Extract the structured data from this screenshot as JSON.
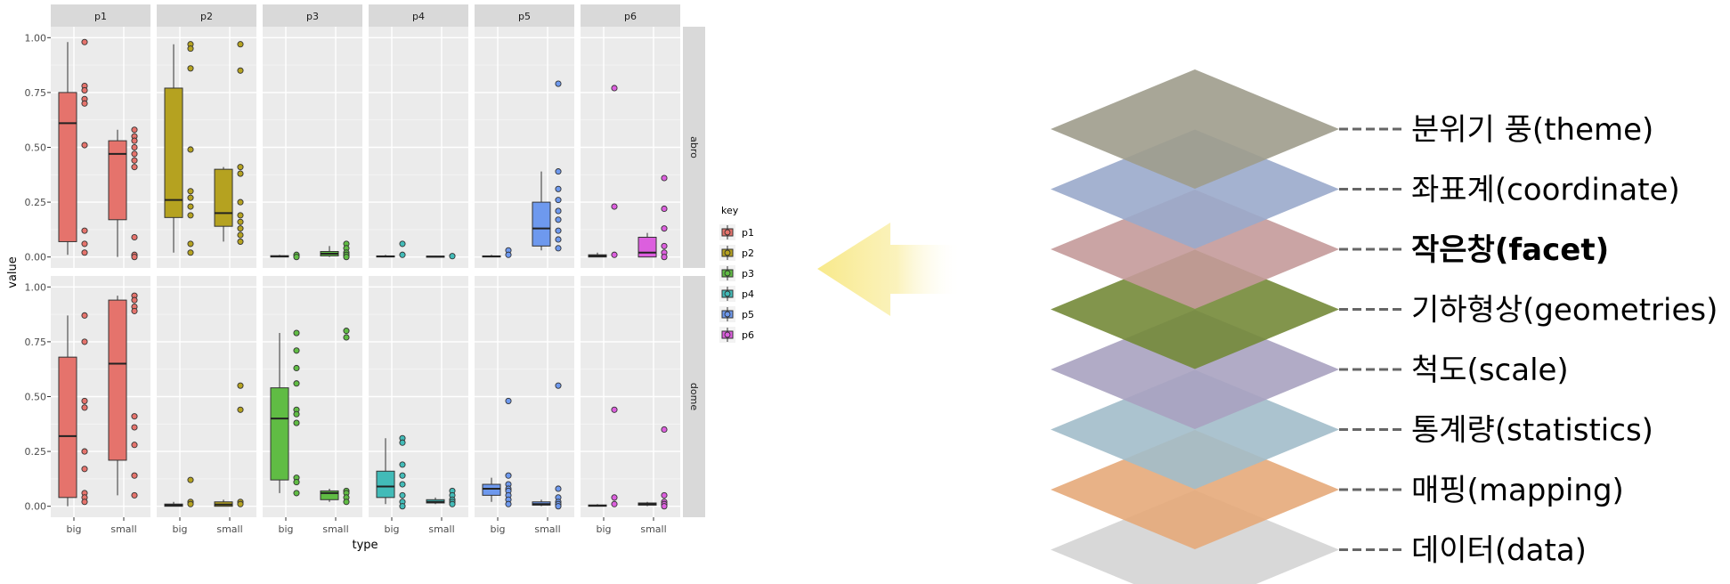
{
  "chart_data": {
    "type": "boxplot",
    "xlabel": "type",
    "ylabel": "value",
    "x_categories": [
      "big",
      "small"
    ],
    "col_facets": [
      "p1",
      "p2",
      "p3",
      "p4",
      "p5",
      "p6"
    ],
    "row_facets": [
      "abro",
      "dome"
    ],
    "y_ticks": [
      "0.00",
      "0.25",
      "0.50",
      "0.75",
      "1.00"
    ],
    "ylim": [
      0,
      1
    ],
    "legend": {
      "title": "key",
      "position": "right",
      "entries": [
        {
          "label": "p1",
          "color": "#E5736C"
        },
        {
          "label": "p2",
          "color": "#B5A220"
        },
        {
          "label": "p3",
          "color": "#60BC44"
        },
        {
          "label": "p4",
          "color": "#42BBB8"
        },
        {
          "label": "p5",
          "color": "#6E99EE"
        },
        {
          "label": "p6",
          "color": "#DC5FDE"
        }
      ]
    },
    "panels": [
      {
        "row": "abro",
        "col": "p1",
        "boxes": [
          {
            "x": "big",
            "min": 0.01,
            "q1": 0.07,
            "median": 0.61,
            "q3": 0.75,
            "max": 0.98,
            "points": [
              0.98,
              0.78,
              0.76,
              0.72,
              0.7,
              0.51,
              0.12,
              0.06,
              0.02
            ]
          },
          {
            "x": "small",
            "min": 0.0,
            "q1": 0.17,
            "median": 0.47,
            "q3": 0.53,
            "max": 0.58,
            "points": [
              0.58,
              0.55,
              0.53,
              0.5,
              0.47,
              0.44,
              0.41,
              0.09,
              0.01,
              0.0
            ]
          }
        ]
      },
      {
        "row": "abro",
        "col": "p2",
        "boxes": [
          {
            "x": "big",
            "min": 0.02,
            "q1": 0.18,
            "median": 0.26,
            "q3": 0.77,
            "max": 0.97,
            "points": [
              0.97,
              0.95,
              0.86,
              0.49,
              0.3,
              0.27,
              0.23,
              0.19,
              0.06,
              0.02
            ]
          },
          {
            "x": "small",
            "min": 0.07,
            "q1": 0.14,
            "median": 0.2,
            "q3": 0.4,
            "max": 0.41,
            "points": [
              0.97,
              0.85,
              0.41,
              0.38,
              0.25,
              0.19,
              0.16,
              0.13,
              0.1,
              0.07
            ]
          }
        ]
      },
      {
        "row": "abro",
        "col": "p3",
        "boxes": [
          {
            "x": "big",
            "min": 0.0,
            "q1": 0.0,
            "median": 0.003,
            "q3": 0.006,
            "max": 0.01,
            "points": [
              0.01,
              0.0
            ]
          },
          {
            "x": "small",
            "min": 0.0,
            "q1": 0.005,
            "median": 0.015,
            "q3": 0.025,
            "max": 0.05,
            "points": [
              0.06,
              0.04,
              0.02,
              0.01,
              0.0
            ]
          }
        ]
      },
      {
        "row": "abro",
        "col": "p4",
        "boxes": [
          {
            "x": "big",
            "min": 0.0,
            "q1": 0.0,
            "median": 0.003,
            "q3": 0.005,
            "max": 0.01,
            "points": [
              0.06,
              0.01
            ]
          },
          {
            "x": "small",
            "min": 0.0,
            "q1": 0.0,
            "median": 0.002,
            "q3": 0.004,
            "max": 0.006,
            "points": [
              0.004
            ]
          }
        ]
      },
      {
        "row": "abro",
        "col": "p5",
        "boxes": [
          {
            "x": "big",
            "min": 0.0,
            "q1": 0.0,
            "median": 0.003,
            "q3": 0.005,
            "max": 0.01,
            "points": [
              0.03,
              0.01
            ]
          },
          {
            "x": "small",
            "min": 0.03,
            "q1": 0.05,
            "median": 0.13,
            "q3": 0.25,
            "max": 0.39,
            "points": [
              0.79,
              0.39,
              0.31,
              0.26,
              0.21,
              0.17,
              0.12,
              0.08,
              0.04
            ]
          }
        ]
      },
      {
        "row": "abro",
        "col": "p6",
        "boxes": [
          {
            "x": "big",
            "min": 0.0,
            "q1": 0.0,
            "median": 0.005,
            "q3": 0.01,
            "max": 0.02,
            "points": [
              0.77,
              0.23,
              0.01
            ]
          },
          {
            "x": "small",
            "min": 0.0,
            "q1": 0.0,
            "median": 0.02,
            "q3": 0.09,
            "max": 0.11,
            "points": [
              0.36,
              0.22,
              0.13,
              0.05,
              0.02,
              0.0
            ]
          }
        ]
      },
      {
        "row": "dome",
        "col": "p1",
        "boxes": [
          {
            "x": "big",
            "min": 0.0,
            "q1": 0.04,
            "median": 0.32,
            "q3": 0.68,
            "max": 0.87,
            "points": [
              0.87,
              0.75,
              0.48,
              0.45,
              0.25,
              0.17,
              0.06,
              0.04,
              0.02
            ]
          },
          {
            "x": "small",
            "min": 0.05,
            "q1": 0.21,
            "median": 0.65,
            "q3": 0.94,
            "max": 0.96,
            "points": [
              0.96,
              0.94,
              0.91,
              0.89,
              0.41,
              0.36,
              0.28,
              0.14,
              0.05
            ]
          }
        ]
      },
      {
        "row": "dome",
        "col": "p2",
        "boxes": [
          {
            "x": "big",
            "min": 0.0,
            "q1": 0.0,
            "median": 0.005,
            "q3": 0.01,
            "max": 0.02,
            "points": [
              0.12,
              0.02,
              0.01
            ]
          },
          {
            "x": "small",
            "min": 0.0,
            "q1": 0.0,
            "median": 0.008,
            "q3": 0.02,
            "max": 0.03,
            "points": [
              0.55,
              0.44,
              0.02,
              0.01
            ]
          }
        ]
      },
      {
        "row": "dome",
        "col": "p3",
        "boxes": [
          {
            "x": "big",
            "min": 0.06,
            "q1": 0.12,
            "median": 0.4,
            "q3": 0.54,
            "max": 0.79,
            "points": [
              0.79,
              0.71,
              0.63,
              0.56,
              0.44,
              0.42,
              0.38,
              0.13,
              0.11,
              0.06
            ]
          },
          {
            "x": "small",
            "min": 0.02,
            "q1": 0.03,
            "median": 0.06,
            "q3": 0.07,
            "max": 0.08,
            "points": [
              0.8,
              0.77,
              0.07,
              0.06,
              0.04,
              0.02
            ]
          }
        ]
      },
      {
        "row": "dome",
        "col": "p4",
        "boxes": [
          {
            "x": "big",
            "min": 0.01,
            "q1": 0.04,
            "median": 0.09,
            "q3": 0.16,
            "max": 0.31,
            "points": [
              0.31,
              0.29,
              0.19,
              0.14,
              0.1,
              0.05,
              0.02,
              0.0
            ]
          },
          {
            "x": "small",
            "min": 0.01,
            "q1": 0.015,
            "median": 0.02,
            "q3": 0.03,
            "max": 0.04,
            "points": [
              0.07,
              0.05,
              0.03,
              0.02,
              0.01
            ]
          }
        ]
      },
      {
        "row": "dome",
        "col": "p5",
        "boxes": [
          {
            "x": "big",
            "min": 0.02,
            "q1": 0.05,
            "median": 0.08,
            "q3": 0.1,
            "max": 0.13,
            "points": [
              0.48,
              0.14,
              0.1,
              0.08,
              0.07,
              0.05,
              0.03,
              0.01
            ]
          },
          {
            "x": "small",
            "min": 0.0,
            "q1": 0.005,
            "median": 0.01,
            "q3": 0.02,
            "max": 0.03,
            "points": [
              0.55,
              0.08,
              0.04,
              0.02,
              0.01,
              0.0
            ]
          }
        ]
      },
      {
        "row": "dome",
        "col": "p6",
        "boxes": [
          {
            "x": "big",
            "min": 0.0,
            "q1": 0.0,
            "median": 0.003,
            "q3": 0.006,
            "max": 0.01,
            "points": [
              0.44,
              0.04,
              0.01
            ]
          },
          {
            "x": "small",
            "min": 0.0,
            "q1": 0.005,
            "median": 0.01,
            "q3": 0.015,
            "max": 0.02,
            "points": [
              0.35,
              0.05,
              0.02,
              0.01,
              0.0
            ]
          }
        ]
      }
    ]
  },
  "layers": [
    {
      "label": "분위기 풍(theme)",
      "color": "#9E9C8C",
      "bold": false
    },
    {
      "label": "좌표계(coordinate)",
      "color": "#9AAACB",
      "bold": false
    },
    {
      "label": "작은창(facet)",
      "color": "#C49A9A",
      "bold": true
    },
    {
      "label": "기하형상(geometries)",
      "color": "#748A38",
      "bold": false
    },
    {
      "label": "척도(scale)",
      "color": "#A9A2C0",
      "bold": false
    },
    {
      "label": "통계량(statistics)",
      "color": "#A2BCCA",
      "bold": false
    },
    {
      "label": "매핑(mapping)",
      "color": "#E6AA7A",
      "bold": false
    },
    {
      "label": "데이터(data)",
      "color": "#D4D4D4",
      "bold": false
    }
  ],
  "arrow": {
    "color": "#F8E98A",
    "direction": "left"
  }
}
